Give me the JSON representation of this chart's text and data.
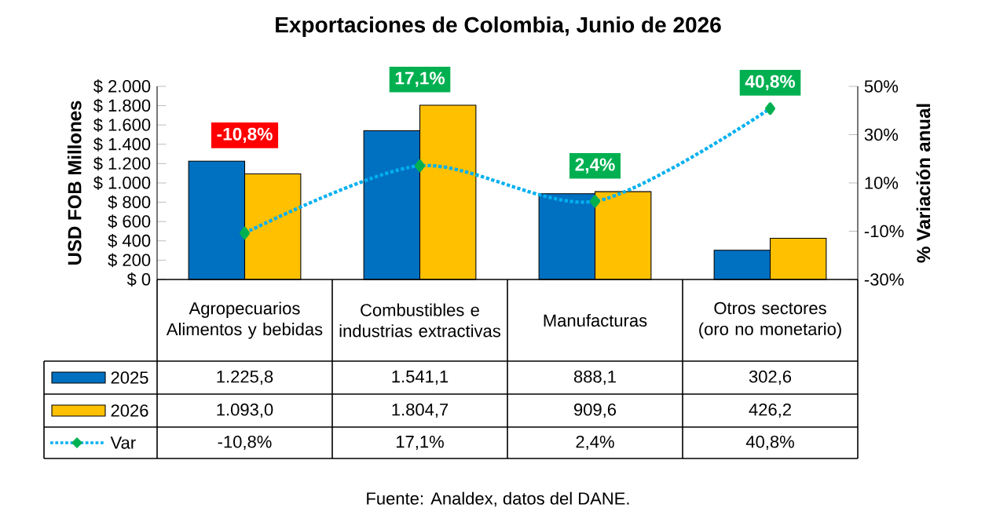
{
  "chart_data": {
    "type": "bar",
    "title": "Exportaciones de Colombia, Junio de 2026",
    "ylabel": "USD FOB Millones",
    "y2label": "% Variación anual",
    "annotations": [
      "Fuente: Analdex, datos del DANE."
    ],
    "categories": [
      "Agropecuarios Alimentos y bebidas",
      "Combustibles e industrias extractivas",
      "Manufacturas",
      "Otros sectores (oro no monetario)"
    ],
    "series": [
      {
        "name": "2025",
        "color": "#0070c0",
        "values": [
          1225.8,
          1541.1,
          888.1,
          302.6
        ],
        "value_labels": [
          "1.225,8",
          "1.541,1",
          "888,1",
          "302,6"
        ]
      },
      {
        "name": "2026",
        "color": "#ffc000",
        "values": [
          1093.0,
          1804.7,
          909.6,
          426.2
        ],
        "value_labels": [
          "1.093,0",
          "1.804,7",
          "909,6",
          "426,2"
        ]
      },
      {
        "name": "Var",
        "type": "line",
        "axis": "y2",
        "color": "#00b0f0",
        "marker": "diamond",
        "line_style": "dotted",
        "values": [
          -10.8,
          17.1,
          2.4,
          40.8
        ],
        "value_labels": [
          "-10,8%",
          "17,1%",
          "2,4%",
          "40,8%"
        ]
      }
    ],
    "legend": "bottom left",
    "ylim": [
      0,
      2000
    ],
    "yticks": [
      {
        "value": 0,
        "label": "$ 0"
      },
      {
        "value": 200,
        "label": "$ 200"
      },
      {
        "value": 400,
        "label": "$ 400"
      },
      {
        "value": 600,
        "label": "$ 600"
      },
      {
        "value": 800,
        "label": "$ 800"
      },
      {
        "value": 1000,
        "label": "$ 1.000"
      },
      {
        "value": 1200,
        "label": "$ 1.200"
      },
      {
        "value": 1400,
        "label": "$ 1.400"
      },
      {
        "value": 1600,
        "label": "$ 1.600"
      },
      {
        "value": 1800,
        "label": "$ 1.800"
      },
      {
        "value": 2000,
        "label": "$ 2.000"
      }
    ],
    "y2lim": [
      -30,
      50
    ],
    "y2ticks": [
      {
        "value": -30,
        "label": "-30%"
      },
      {
        "value": -10,
        "label": "-10%"
      },
      {
        "value": 10,
        "label": "10%"
      },
      {
        "value": 30,
        "label": "30%"
      },
      {
        "value": 50,
        "label": "50%"
      }
    ]
  }
}
